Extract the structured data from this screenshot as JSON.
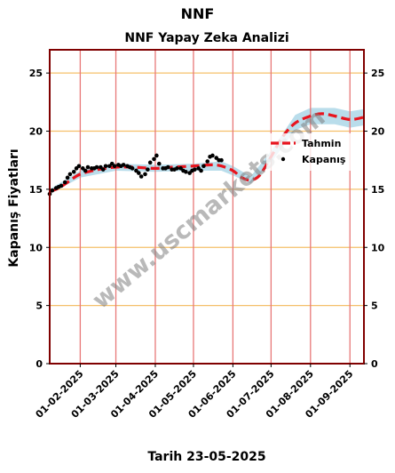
{
  "chart_data": {
    "type": "line",
    "suptitle": "NNF",
    "title": "NNF Yapay Zeka Analizi",
    "xlabel": "Tarih 23-05-2025",
    "ylabel": "Kapanış Fiyatları",
    "ylim": [
      0,
      27
    ],
    "yticks": [
      0,
      5,
      10,
      15,
      20,
      25
    ],
    "xlim": [
      "2025-01-08",
      "2025-09-12"
    ],
    "xticks": [
      "01-02-2025",
      "01-03-2025",
      "01-04-2025",
      "01-05-2025",
      "01-06-2025",
      "01-07-2025",
      "01-08-2025",
      "01-09-2025"
    ],
    "grid": {
      "horizontal": "orange",
      "vertical": "red"
    },
    "legend": {
      "position": "right",
      "entries": [
        "Tahmin",
        "Kapanış"
      ]
    },
    "watermark": "www.uscmarkets.com",
    "colors": {
      "forecast": "#e8141e",
      "closing": "#000000",
      "band": "#a8d4e6",
      "hgrid": "#f5c06a",
      "vgrid": "#e87878",
      "frame": "#800000"
    },
    "series": [
      {
        "name": "Kapanış",
        "style": "points",
        "x": [
          "2025-01-08",
          "2025-01-10",
          "2025-01-13",
          "2025-01-15",
          "2025-01-17",
          "2025-01-20",
          "2025-01-22",
          "2025-01-24",
          "2025-01-27",
          "2025-01-29",
          "2025-01-31",
          "2025-02-03",
          "2025-02-05",
          "2025-02-07",
          "2025-02-10",
          "2025-02-12",
          "2025-02-14",
          "2025-02-17",
          "2025-02-19",
          "2025-02-21",
          "2025-02-24",
          "2025-02-26",
          "2025-02-28",
          "2025-03-03",
          "2025-03-05",
          "2025-03-07",
          "2025-03-10",
          "2025-03-12",
          "2025-03-14",
          "2025-03-17",
          "2025-03-19",
          "2025-03-21",
          "2025-03-24",
          "2025-03-26",
          "2025-03-28",
          "2025-03-31",
          "2025-04-02",
          "2025-04-04",
          "2025-04-07",
          "2025-04-09",
          "2025-04-11",
          "2025-04-14",
          "2025-04-16",
          "2025-04-18",
          "2025-04-21",
          "2025-04-23",
          "2025-04-25",
          "2025-04-28",
          "2025-04-30",
          "2025-05-02",
          "2025-05-05",
          "2025-05-07",
          "2025-05-09",
          "2025-05-12",
          "2025-05-14",
          "2025-05-16",
          "2025-05-19",
          "2025-05-21",
          "2025-05-23"
        ],
        "y": [
          14.6,
          14.9,
          15.1,
          15.2,
          15.3,
          15.6,
          16.0,
          16.3,
          16.5,
          16.8,
          17.0,
          16.8,
          16.6,
          16.9,
          16.8,
          16.8,
          16.9,
          16.9,
          16.7,
          17.0,
          17.0,
          17.2,
          17.0,
          17.1,
          17.0,
          17.1,
          17.0,
          16.9,
          16.8,
          16.6,
          16.4,
          16.1,
          16.3,
          16.7,
          17.3,
          17.6,
          17.9,
          17.2,
          16.8,
          16.8,
          16.9,
          16.7,
          16.7,
          16.8,
          16.8,
          16.6,
          16.5,
          16.4,
          16.6,
          16.7,
          16.8,
          16.6,
          17.0,
          17.4,
          17.8,
          17.9,
          17.7,
          17.5,
          17.5
        ]
      },
      {
        "name": "Tahmin",
        "style": "dashed",
        "x": [
          "2025-01-08",
          "2025-01-15",
          "2025-01-22",
          "2025-02-01",
          "2025-02-15",
          "2025-03-01",
          "2025-03-15",
          "2025-04-01",
          "2025-04-15",
          "2025-05-01",
          "2025-05-15",
          "2025-05-23",
          "2025-06-01",
          "2025-06-08",
          "2025-06-15",
          "2025-06-22",
          "2025-07-01",
          "2025-07-10",
          "2025-07-20",
          "2025-08-01",
          "2025-08-10",
          "2025-08-20",
          "2025-09-01",
          "2025-09-12"
        ],
        "y": [
          14.8,
          15.1,
          15.6,
          16.3,
          16.7,
          16.9,
          16.9,
          16.8,
          16.9,
          17.0,
          17.1,
          17.0,
          16.6,
          16.0,
          15.8,
          16.2,
          17.8,
          19.5,
          20.7,
          21.3,
          21.5,
          21.3,
          21.0,
          21.2
        ]
      }
    ],
    "band": {
      "x": [
        "2025-01-08",
        "2025-02-01",
        "2025-03-01",
        "2025-04-01",
        "2025-05-01",
        "2025-05-23",
        "2025-06-01",
        "2025-06-15",
        "2025-07-01",
        "2025-07-20",
        "2025-08-01",
        "2025-08-20",
        "2025-09-01",
        "2025-09-12"
      ],
      "lower": [
        14.6,
        16.0,
        16.6,
        16.5,
        16.6,
        16.6,
        16.2,
        15.5,
        17.3,
        20.1,
        20.6,
        20.6,
        20.3,
        20.5
      ],
      "upper": [
        15.0,
        16.6,
        17.2,
        17.1,
        17.2,
        17.4,
        17.0,
        16.1,
        18.3,
        21.4,
        22.0,
        22.0,
        21.7,
        21.9
      ]
    }
  }
}
